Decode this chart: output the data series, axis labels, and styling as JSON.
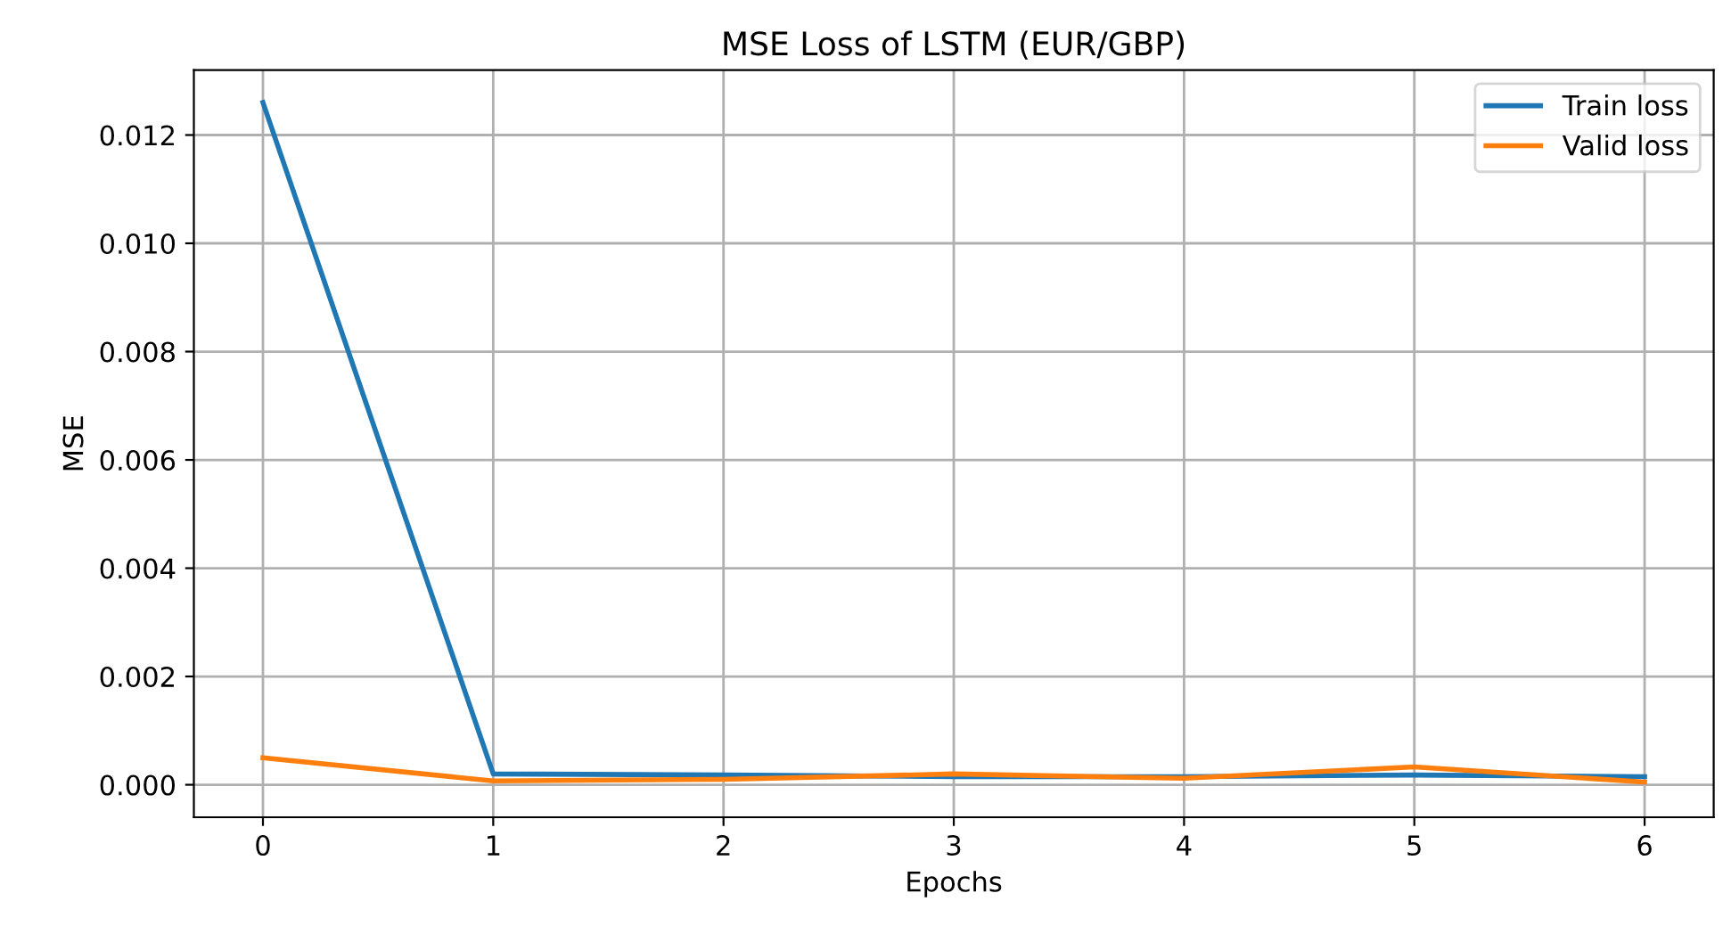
{
  "chart_data": {
    "type": "line",
    "title": "MSE Loss of LSTM (EUR/GBP)",
    "xlabel": "Epochs",
    "ylabel": "MSE",
    "x": [
      0,
      1,
      2,
      3,
      4,
      5,
      6
    ],
    "series": [
      {
        "name": "Train loss",
        "color": "#1f77b4",
        "values": [
          0.0126,
          0.0002,
          0.00018,
          0.00015,
          0.00015,
          0.00018,
          0.00015
        ]
      },
      {
        "name": "Valid loss",
        "color": "#ff7f0e",
        "values": [
          0.0005,
          7e-05,
          0.0001,
          0.0002,
          0.00012,
          0.00033,
          5e-05
        ]
      }
    ],
    "xlim": [
      -0.3,
      6.3
    ],
    "xticks": [
      0,
      1,
      2,
      3,
      4,
      5,
      6
    ],
    "ylim": [
      -0.0006,
      0.0132
    ],
    "yticks": [
      {
        "value": 0,
        "label": "0.000"
      },
      {
        "value": 0.002,
        "label": "0.002"
      },
      {
        "value": 0.004,
        "label": "0.004"
      },
      {
        "value": 0.006,
        "label": "0.006"
      },
      {
        "value": 0.008,
        "label": "0.008"
      },
      {
        "value": 0.01,
        "label": "0.010"
      },
      {
        "value": 0.012,
        "label": "0.012"
      }
    ],
    "grid": true,
    "legend": "top right"
  }
}
